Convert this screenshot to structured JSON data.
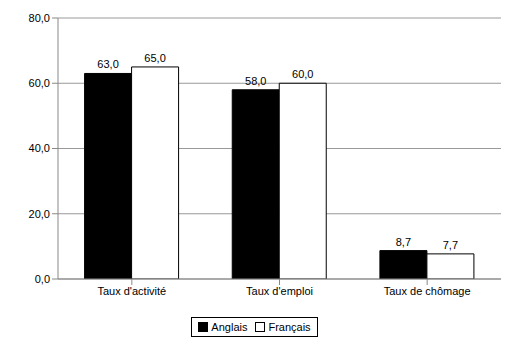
{
  "chart_data": {
    "type": "bar",
    "categories": [
      "Taux d'activité",
      "Taux d'emploi",
      "Taux de chômage"
    ],
    "series": [
      {
        "name": "Anglais",
        "color": "#000000",
        "values": [
          63.0,
          58.0,
          8.7
        ],
        "value_labels": [
          "63,0",
          "58,0",
          "8,7"
        ]
      },
      {
        "name": "Français",
        "color": "#ffffff",
        "values": [
          65.0,
          60.0,
          7.7
        ],
        "value_labels": [
          "65,0",
          "60,0",
          "7,7"
        ]
      }
    ],
    "ylim": [
      0,
      80
    ],
    "yticks": [
      {
        "value": 0,
        "label": "0,0"
      },
      {
        "value": 20,
        "label": "20,0"
      },
      {
        "value": 40,
        "label": "40,0"
      },
      {
        "value": 60,
        "label": "60,0"
      },
      {
        "value": 80,
        "label": "80,0"
      }
    ],
    "grid": true,
    "legend": "bottom",
    "data_labels": true
  }
}
